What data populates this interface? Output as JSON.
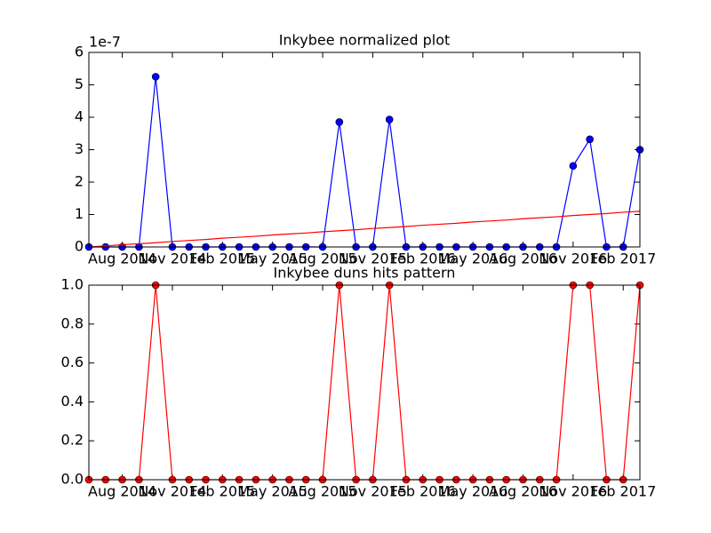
{
  "chart_data": [
    {
      "type": "line",
      "title": "Inkybee normalized plot",
      "offset_text": "1e-7",
      "categories": [
        null,
        null,
        "Aug 2014",
        null,
        null,
        "Nov 2014",
        null,
        null,
        "Feb 2015",
        null,
        null,
        "May 2015",
        null,
        null,
        "Aug 2015",
        null,
        null,
        "Nov 2015",
        null,
        null,
        "Feb 2016",
        null,
        null,
        "May 2016",
        null,
        null,
        "Aug 2016",
        null,
        null,
        "Nov 2016",
        null,
        null,
        "Feb 2017",
        null
      ],
      "series": [
        {
          "color": "#0000ff",
          "marker": "o",
          "values": [
            0,
            0,
            0,
            0,
            5.25,
            0,
            0,
            0,
            0,
            0,
            0,
            0,
            0,
            0,
            0,
            3.85,
            0,
            0,
            3.93,
            0,
            0,
            0,
            0,
            0,
            0,
            0,
            0,
            0,
            0,
            2.5,
            3.32,
            0,
            0,
            3.0
          ]
        },
        {
          "color": "#ff0000",
          "values": [
            0,
            0.03,
            0.07,
            0.1,
            0.13,
            0.17,
            0.2,
            0.23,
            0.27,
            0.3,
            0.33,
            0.37,
            0.4,
            0.43,
            0.47,
            0.5,
            0.53,
            0.57,
            0.6,
            0.63,
            0.67,
            0.7,
            0.73,
            0.77,
            0.8,
            0.83,
            0.87,
            0.9,
            0.93,
            0.97,
            1.0,
            1.03,
            1.07,
            1.1
          ]
        }
      ],
      "ylim": [
        0,
        6
      ],
      "yticks": [
        0,
        1,
        2,
        3,
        4,
        5,
        6
      ]
    },
    {
      "type": "line",
      "title": "Inkybee duns hits pattern",
      "categories": [
        null,
        null,
        "Aug 2014",
        null,
        null,
        "Nov 2014",
        null,
        null,
        "Feb 2015",
        null,
        null,
        "May 2015",
        null,
        null,
        "Aug 2015",
        null,
        null,
        "Nov 2015",
        null,
        null,
        "Feb 2016",
        null,
        null,
        "May 2016",
        null,
        null,
        "Aug 2016",
        null,
        null,
        "Nov 2016",
        null,
        null,
        "Feb 2017",
        null
      ],
      "series": [
        {
          "color": "#ff0000",
          "marker": "o",
          "values": [
            0,
            0,
            0,
            0,
            1,
            0,
            0,
            0,
            0,
            0,
            0,
            0,
            0,
            0,
            0,
            1,
            0,
            0,
            1,
            0,
            0,
            0,
            0,
            0,
            0,
            0,
            0,
            0,
            0,
            1,
            1,
            0,
            0,
            1
          ]
        }
      ],
      "ylim": [
        0,
        1
      ],
      "yticks": [
        {
          "value": 0,
          "label": "0.0"
        },
        {
          "value": 0.2,
          "label": "0.2"
        },
        {
          "value": 0.4,
          "label": "0.4"
        },
        {
          "value": 0.6,
          "label": "0.6"
        },
        {
          "value": 0.8,
          "label": "0.8"
        },
        {
          "value": 1,
          "label": "1.0"
        }
      ]
    }
  ]
}
